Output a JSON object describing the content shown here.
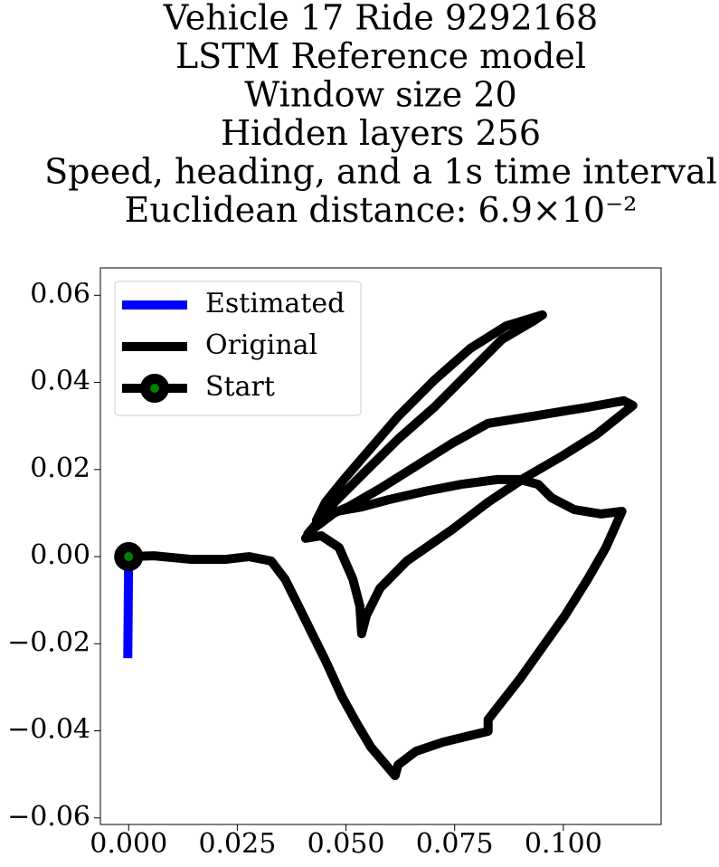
{
  "chart_data": {
    "type": "line",
    "title": [
      "Vehicle 17 Ride 9292168",
      "LSTM Reference model",
      "Window size 20",
      "Hidden layers 256",
      "Speed, heading, and a 1s time interval",
      "Euclidean distance: 6.9×10⁻²"
    ],
    "legend": "upper left",
    "xlim": [
      -0.0065,
      0.1225
    ],
    "ylim": [
      -0.0615,
      0.0663
    ],
    "xticks": [
      {
        "value": 0,
        "label": "0.000"
      },
      {
        "value": 0.025,
        "label": "0.025"
      },
      {
        "value": 0.05,
        "label": "0.050"
      },
      {
        "value": 0.075,
        "label": "0.075"
      },
      {
        "value": 0.1,
        "label": "0.100"
      }
    ],
    "yticks": [
      {
        "value": -0.06,
        "label": "−0.06"
      },
      {
        "value": -0.04,
        "label": "−0.04"
      },
      {
        "value": -0.02,
        "label": "−0.02"
      },
      {
        "value": 0,
        "label": "0.00"
      },
      {
        "value": 0.02,
        "label": "0.02"
      },
      {
        "value": 0.04,
        "label": "0.04"
      },
      {
        "value": 0.06,
        "label": "0.06"
      }
    ],
    "series": [
      {
        "name": "Estimated",
        "color": "#0000ff",
        "x": [
          0,
          -0.0002
        ],
        "values": [
          0,
          -0.0233
        ]
      },
      {
        "name": "Original",
        "color": "#000000",
        "x": [
          0,
          0.0058,
          0.0141,
          0.0225,
          0.0277,
          0.0328,
          0.036,
          0.0391,
          0.0422,
          0.0453,
          0.0491,
          0.0526,
          0.0557,
          0.0613,
          0.062,
          0.0661,
          0.0723,
          0.0827,
          0.0827,
          0.0859,
          0.09,
          0.0952,
          0.1004,
          0.1056,
          0.1098,
          0.1135,
          0.1087,
          0.1025,
          0.0973,
          0.0942,
          0.09,
          0.0848,
          0.0765,
          0.0682,
          0.0599,
          0.0536,
          0.0478,
          0.0422,
          0.0407,
          0.0443,
          0.0484,
          0.0516,
          0.0532,
          0.0536,
          0.0547,
          0.0578,
          0.064,
          0.0744,
          0.0827,
          0.0911,
          0.0994,
          0.1077,
          0.116,
          0.1139,
          0.1056,
          0.0952,
          0.0827,
          0.0744,
          0.0661,
          0.0578,
          0.0505,
          0.0432,
          0.0453,
          0.0495,
          0.0557,
          0.062,
          0.0703,
          0.0786,
          0.0869,
          0.0952,
          0.0931,
          0.0859,
          0.0786,
          0.0703,
          0.062,
          0.0536,
          0.0474,
          0.0412
        ],
        "values": [
          0,
          0.0002,
          -0.0006,
          -0.0006,
          0,
          -0.001,
          -0.0052,
          -0.0114,
          -0.0177,
          -0.0239,
          -0.0322,
          -0.0385,
          -0.0437,
          -0.0503,
          -0.0478,
          -0.0447,
          -0.0426,
          -0.0401,
          -0.0374,
          -0.0333,
          -0.0281,
          -0.0208,
          -0.0135,
          -0.0052,
          0.0021,
          0.0104,
          0.0098,
          0.0108,
          0.0135,
          0.0166,
          0.0177,
          0.0177,
          0.0166,
          0.015,
          0.0131,
          0.0114,
          0.0104,
          0.0062,
          0.0042,
          0.0048,
          0.0021,
          -0.0052,
          -0.0114,
          -0.0177,
          -0.0135,
          -0.0073,
          -0.001,
          0.0062,
          0.0125,
          0.0181,
          0.0229,
          0.0281,
          0.0347,
          0.0358,
          0.0343,
          0.0326,
          0.0306,
          0.026,
          0.0208,
          0.0156,
          0.0114,
          0.0083,
          0.0125,
          0.0177,
          0.0249,
          0.0322,
          0.0405,
          0.0478,
          0.053,
          0.0555,
          0.0541,
          0.0499,
          0.0426,
          0.0343,
          0.027,
          0.0187,
          0.0125,
          0.0052
        ]
      },
      {
        "name": "Start",
        "color": "#000000",
        "marker_color": "#008000",
        "x": [
          0
        ],
        "values": [
          0
        ]
      }
    ]
  }
}
